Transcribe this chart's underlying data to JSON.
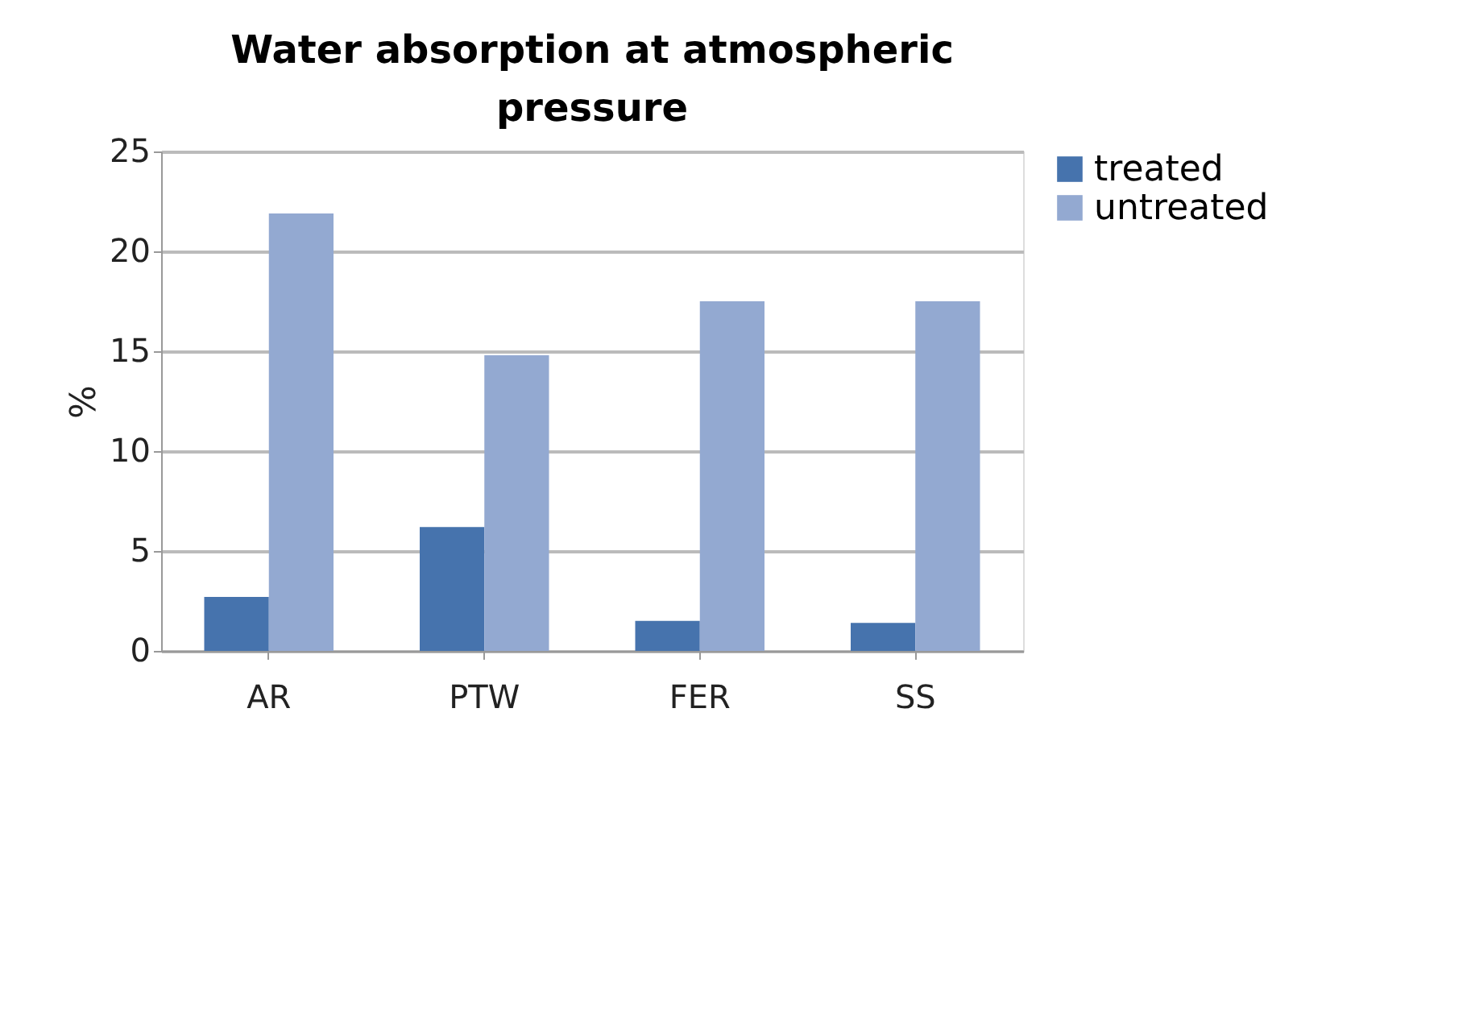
{
  "chart_data": {
    "type": "bar",
    "title": "Water absorption at atmospheric pressure",
    "ylabel": "%",
    "categories": [
      "AR",
      "PTW",
      "FER",
      "SS"
    ],
    "series": [
      {
        "name": "treated",
        "color": "#4673ad",
        "values": [
          2.7,
          6.2,
          1.5,
          1.4
        ]
      },
      {
        "name": "untreated",
        "color": "#93a9d1",
        "values": [
          21.9,
          14.8,
          17.5,
          17.5
        ]
      }
    ],
    "ylim": [
      0,
      25
    ],
    "yticks": [
      0,
      5,
      10,
      15,
      20,
      25
    ],
    "grid": "y",
    "legend": "right"
  }
}
